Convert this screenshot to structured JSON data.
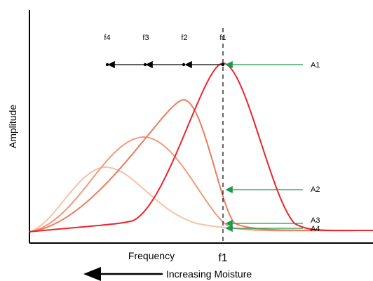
{
  "axes": {
    "ylabel": "Amplitude",
    "xlabel": "Frequency",
    "direction_label": "Increasing Moisture"
  },
  "markers": {
    "frequency_labels": [
      "f4",
      "f3",
      "f2",
      "f1"
    ],
    "amplitude_labels": [
      "A1",
      "A2",
      "A3",
      "A4"
    ],
    "f1_axis_label": "f1"
  },
  "curves": [
    {
      "id": "f1",
      "color": "#e8262c"
    },
    {
      "id": "f2",
      "color": "#ee7a5c"
    },
    {
      "id": "f3",
      "color": "#f09a7b"
    },
    {
      "id": "f4",
      "color": "#f6c2a6"
    }
  ],
  "colors": {
    "arrow_green": "#1a9a4a",
    "axis": "#000000"
  }
}
